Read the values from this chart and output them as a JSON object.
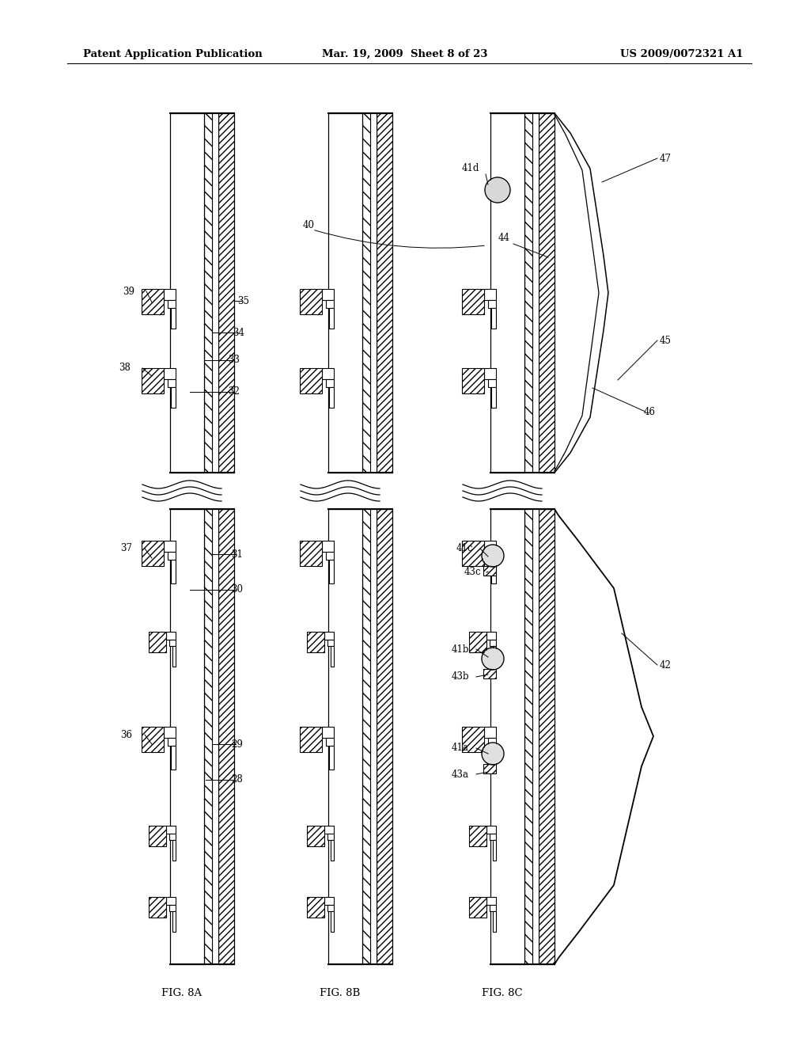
{
  "bg_color": "#ffffff",
  "header_left": "Patent Application Publication",
  "header_center": "Mar. 19, 2009  Sheet 8 of 23",
  "header_right": "US 2009/0072321 A1",
  "fig_labels": [
    "FIG. 8A",
    "FIG. 8B",
    "FIG. 8C"
  ],
  "line_color": "#000000",
  "hatch_color": "#000000"
}
